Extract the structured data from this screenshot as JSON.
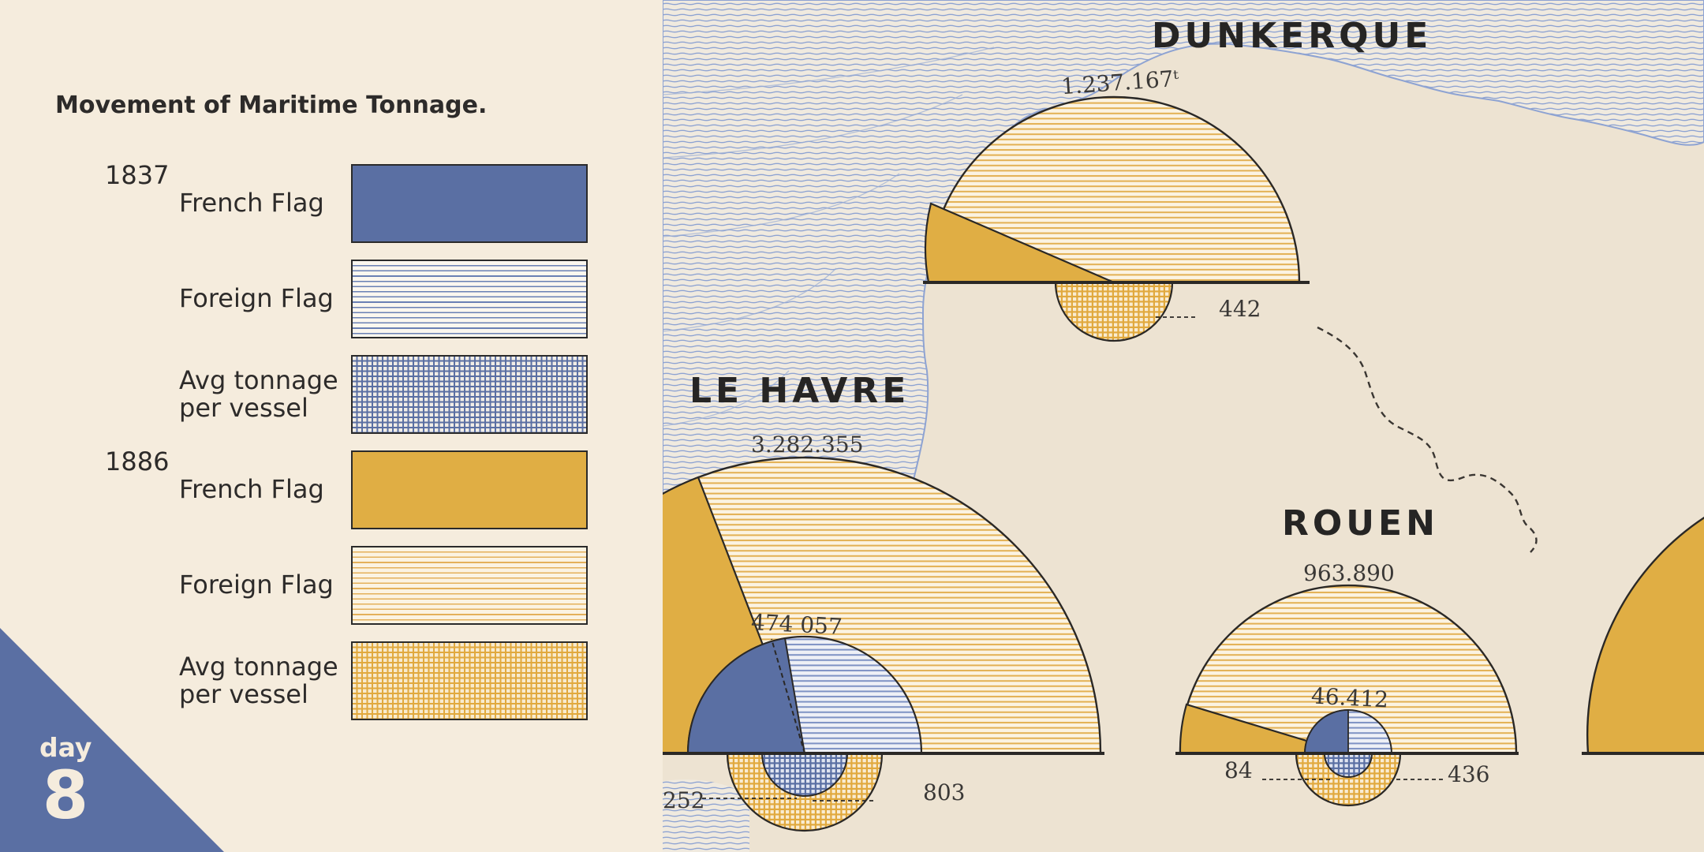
{
  "legend": {
    "title": "Movement of Maritime Tonnage.",
    "groups": [
      {
        "year": "1837",
        "items": [
          {
            "label": "French Flag",
            "pattern": "solid",
            "color": "#5a6fa3"
          },
          {
            "label": "Foreign Flag",
            "pattern": "horizontal-lines",
            "color": "#6a80b4"
          },
          {
            "label_line1": "Avg tonnage",
            "label_line2": "per vessel",
            "pattern": "grid",
            "color": "#5a6fa3"
          }
        ]
      },
      {
        "year": "1886",
        "items": [
          {
            "label": "French Flag",
            "pattern": "solid",
            "color": "#e0ae44"
          },
          {
            "label": "Foreign Flag",
            "pattern": "horizontal-lines",
            "color": "#e4b05a"
          },
          {
            "label_line1": "Avg tonnage",
            "label_line2": "per vessel",
            "pattern": "grid",
            "color": "#e1a93e"
          }
        ]
      }
    ]
  },
  "badge": {
    "word": "day",
    "number": "8",
    "color": "#5a6fa3"
  },
  "map": {
    "colors": {
      "paper": "#ede3d2",
      "water_lines": "#8ea3d2",
      "ink": "#2a2826",
      "gold": "#e0ae44",
      "blue": "#5a6fa3"
    },
    "cities": [
      {
        "id": "dunkerque",
        "name": "DUNKERQUE",
        "total_1886": "1.237.167ᵗ",
        "avg_tonnage_1886": "442"
      },
      {
        "id": "le-havre",
        "name": "LE HAVRE",
        "total_1886": "3.282.355",
        "total_1837": "474 057",
        "avg_tonnage_1837": "252",
        "avg_tonnage_1886": "803"
      },
      {
        "id": "rouen",
        "name": "ROUEN",
        "total_1886": "963.890",
        "total_1837": "46.412",
        "avg_tonnage_1837": "84",
        "avg_tonnage_1886": "436"
      }
    ]
  }
}
